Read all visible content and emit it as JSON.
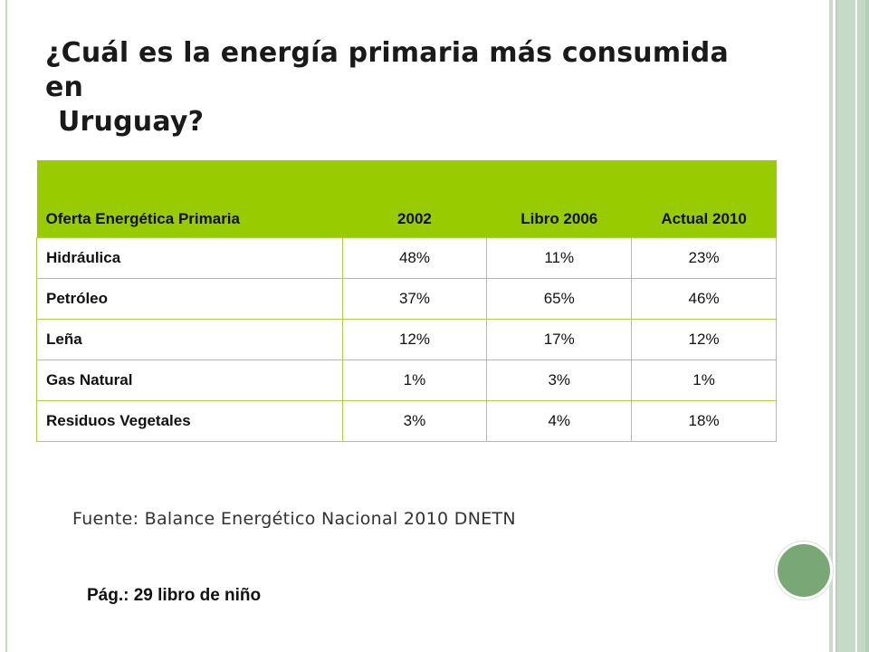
{
  "slide": {
    "title_line1": "¿Cuál es la energía primaria más consumida en",
    "title_line2": "Uruguay?",
    "source": "Fuente: Balance Energético Nacional 2010 DNETN",
    "page_note": "Pág.: 29 libro de niño"
  },
  "table": {
    "headers": [
      "Oferta Energética Primaria",
      "2002",
      "Libro 2006",
      "Actual 2010"
    ],
    "rows": [
      [
        "Hidráulica",
        "48%",
        "11%",
        "23%"
      ],
      [
        "Petróleo",
        "37%",
        "65%",
        "46%"
      ],
      [
        "Leña",
        "12%",
        "17%",
        "12%"
      ],
      [
        "Gas Natural",
        "1%",
        "3%",
        "1%"
      ],
      [
        "Residuos Vegetales",
        "3%",
        "4%",
        "18%"
      ]
    ]
  },
  "colors": {
    "header_green": "#99cc00",
    "grid_green": "#a8d048",
    "accent_circle": "#79a776",
    "stripe_green": "#c6dac8"
  }
}
